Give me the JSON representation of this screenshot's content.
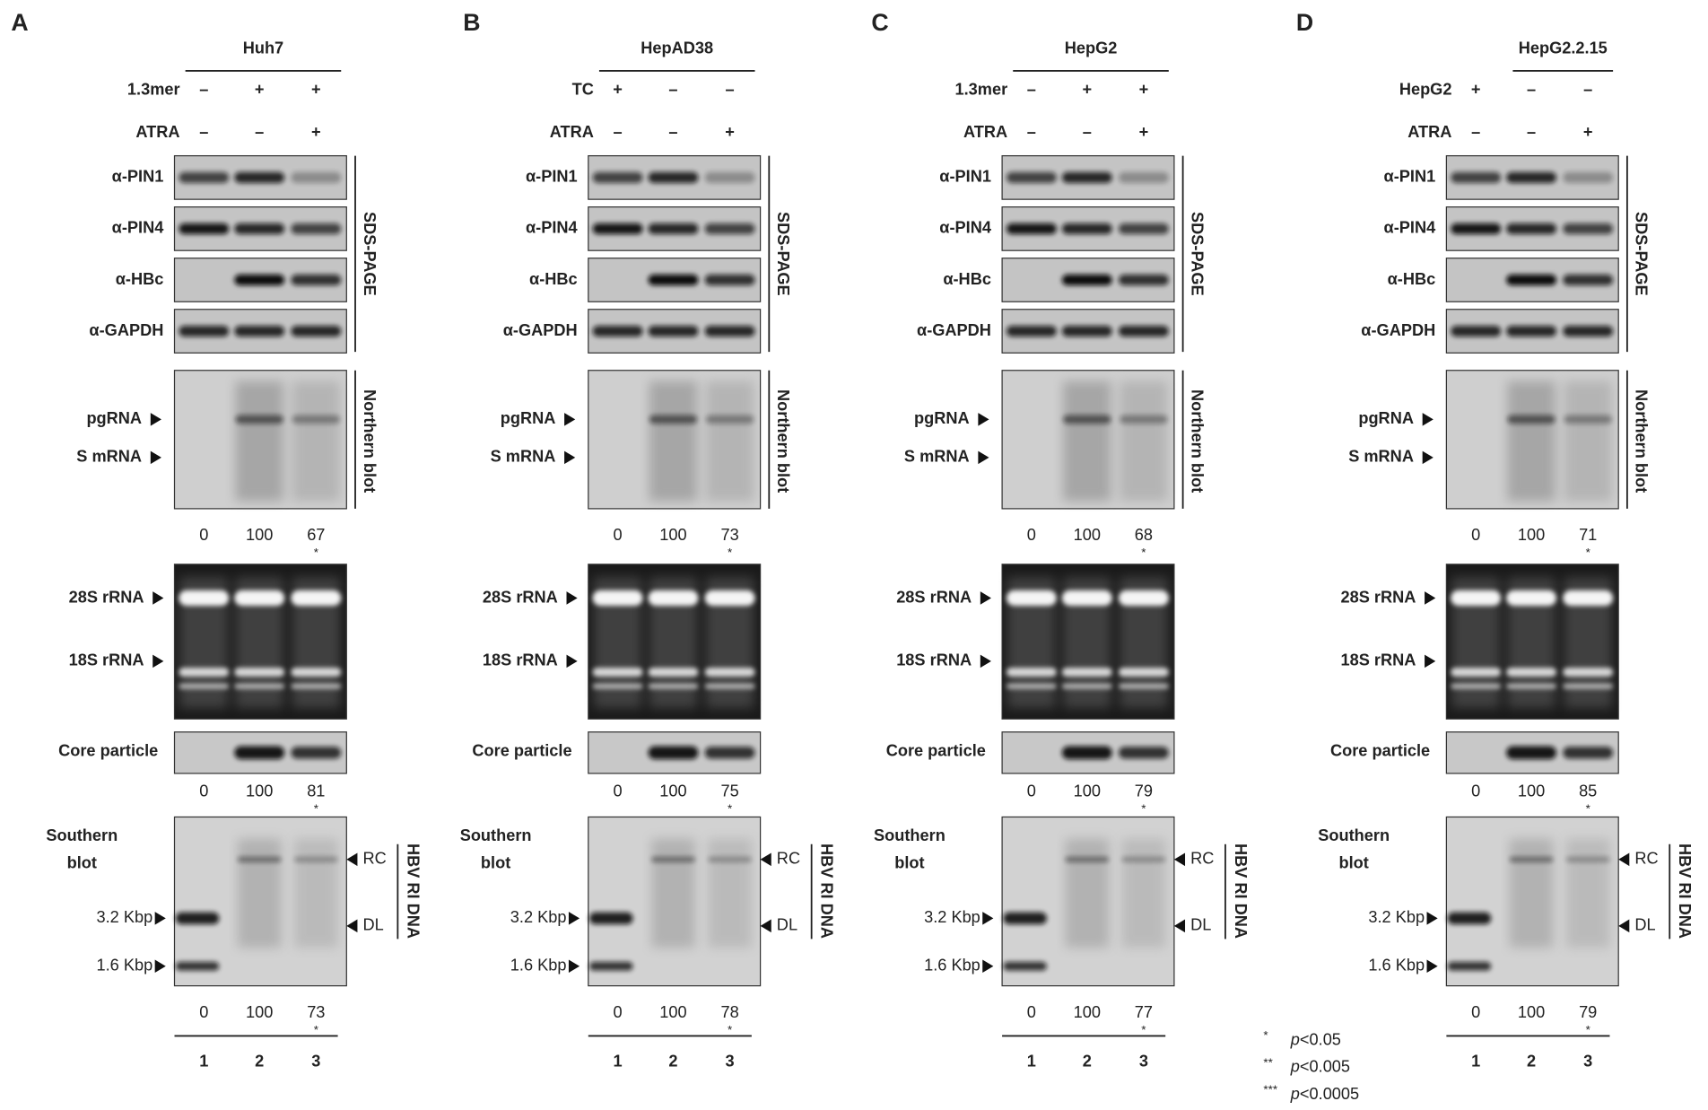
{
  "panels": [
    {
      "letter": "A",
      "cell_line": "Huh7",
      "conditions": [
        {
          "name": "1.3mer",
          "lanes": [
            "–",
            "+",
            "+"
          ]
        },
        {
          "name": "ATRA",
          "lanes": [
            "–",
            "–",
            "+"
          ]
        }
      ],
      "western_labels": [
        "α-PIN1",
        "α-PIN4",
        "α-HBc",
        "α-GAPDH"
      ],
      "western_method": "SDS-PAGE",
      "northern_labels": [
        "pgRNA",
        "S mRNA"
      ],
      "northern_method": "Northern blot",
      "northern_quant": [
        0,
        100,
        67
      ],
      "northern_significance": "*",
      "rrna_labels": [
        "28S rRNA",
        "18S rRNA"
      ],
      "core_label": "Core particle",
      "core_quant": [
        0,
        100,
        81
      ],
      "core_significance": "*",
      "southern_label": [
        "Southern",
        "blot"
      ],
      "southern_markers": [
        "3.2 Kbp",
        "1.6 Kbp"
      ],
      "southern_forms": [
        "RC",
        "DL"
      ],
      "southern_method": "HBV RI DNA",
      "southern_quant": [
        0,
        100,
        73
      ],
      "southern_significance": "*",
      "lane_numbers": [
        1,
        2,
        3
      ]
    },
    {
      "letter": "B",
      "cell_line": "HepAD38",
      "conditions": [
        {
          "name": "TC",
          "lanes": [
            "+",
            "–",
            "–"
          ]
        },
        {
          "name": "ATRA",
          "lanes": [
            "–",
            "–",
            "+"
          ]
        }
      ],
      "western_labels": [
        "α-PIN1",
        "α-PIN4",
        "α-HBc",
        "α-GAPDH"
      ],
      "western_method": "SDS-PAGE",
      "northern_labels": [
        "pgRNA",
        "S mRNA"
      ],
      "northern_method": "Northern blot",
      "northern_quant": [
        0,
        100,
        73
      ],
      "northern_significance": "*",
      "rrna_labels": [
        "28S rRNA",
        "18S rRNA"
      ],
      "core_label": "Core particle",
      "core_quant": [
        0,
        100,
        75
      ],
      "core_significance": "*",
      "southern_label": [
        "Southern",
        "blot"
      ],
      "southern_markers": [
        "3.2 Kbp",
        "1.6 Kbp"
      ],
      "southern_forms": [
        "RC",
        "DL"
      ],
      "southern_method": "HBV RI DNA",
      "southern_quant": [
        0,
        100,
        78
      ],
      "southern_significance": "*",
      "lane_numbers": [
        1,
        2,
        3
      ]
    },
    {
      "letter": "C",
      "cell_line": "HepG2",
      "conditions": [
        {
          "name": "1.3mer",
          "lanes": [
            "–",
            "+",
            "+"
          ]
        },
        {
          "name": "ATRA",
          "lanes": [
            "–",
            "–",
            "+"
          ]
        }
      ],
      "western_labels": [
        "α-PIN1",
        "α-PIN4",
        "α-HBc",
        "α-GAPDH"
      ],
      "western_method": "SDS-PAGE",
      "northern_labels": [
        "pgRNA",
        "S mRNA"
      ],
      "northern_method": "Northern blot",
      "northern_quant": [
        0,
        100,
        68
      ],
      "northern_significance": "*",
      "rrna_labels": [
        "28S rRNA",
        "18S rRNA"
      ],
      "core_label": "Core particle",
      "core_quant": [
        0,
        100,
        79
      ],
      "core_significance": "*",
      "southern_label": [
        "Southern",
        "blot"
      ],
      "southern_markers": [
        "3.2 Kbp",
        "1.6 Kbp"
      ],
      "southern_forms": [
        "RC",
        "DL"
      ],
      "southern_method": "HBV RI DNA",
      "southern_quant": [
        0,
        100,
        77
      ],
      "southern_significance": "*",
      "lane_numbers": [
        1,
        2,
        3
      ]
    },
    {
      "letter": "D",
      "cell_line": "HepG2.2.15",
      "conditions": [
        {
          "name": "HepG2",
          "lanes": [
            "+",
            "–",
            "–"
          ]
        },
        {
          "name": "ATRA",
          "lanes": [
            "–",
            "–",
            "+"
          ]
        }
      ],
      "western_labels": [
        "α-PIN1",
        "α-PIN4",
        "α-HBc",
        "α-GAPDH"
      ],
      "western_method": "SDS-PAGE",
      "northern_labels": [
        "pgRNA",
        "S mRNA"
      ],
      "northern_method": "Northern blot",
      "northern_quant": [
        0,
        100,
        71
      ],
      "northern_significance": "*",
      "rrna_labels": [
        "28S rRNA",
        "18S rRNA"
      ],
      "core_label": "Core particle",
      "core_quant": [
        0,
        100,
        85
      ],
      "core_significance": "*",
      "southern_label": [
        "Southern",
        "blot"
      ],
      "southern_markers": [
        "3.2 Kbp",
        "1.6 Kbp"
      ],
      "southern_forms": [
        "RC",
        "DL"
      ],
      "southern_method": "HBV RI DNA",
      "southern_quant": [
        0,
        100,
        79
      ],
      "southern_significance": "*",
      "lane_numbers": [
        1,
        2,
        3
      ]
    }
  ],
  "legend": [
    {
      "mark": "*",
      "symbol": "p",
      "threshold": "<0.05"
    },
    {
      "mark": "**",
      "symbol": "p",
      "threshold": "<0.005"
    },
    {
      "mark": "***",
      "symbol": "p",
      "threshold": "<0.0005"
    }
  ]
}
